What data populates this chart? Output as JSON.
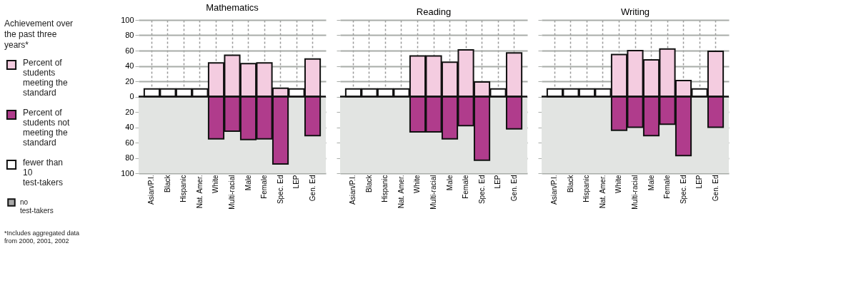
{
  "chart_data": [
    {
      "type": "bar",
      "title": "Mathematics",
      "legend_title": "Achievement over the past three years*",
      "legend": "left",
      "grid": true,
      "stacked": true,
      "annotations": [
        "*Includes aggregated data from 2000, 2001, 2002"
      ],
      "categories": [
        "Asian/P.I.",
        "Black",
        "Hispanic",
        "Nat. Amer.",
        "White",
        "Multi-racial",
        "Male",
        "Female",
        "Spec. Ed",
        "LEP",
        "Gen. Ed"
      ],
      "series": [
        {
          "name": "Percent of students meeting the standard",
          "color": "#f4cce0",
          "values": [
            null,
            null,
            null,
            null,
            44,
            54,
            43,
            44,
            11,
            null,
            49
          ]
        },
        {
          "name": "Percent of students not meeting the standard",
          "color": "#b03c8c",
          "values": [
            null,
            null,
            null,
            null,
            -55,
            -45,
            -56,
            -55,
            -88,
            null,
            -51
          ]
        },
        {
          "name": "fewer than 10 test-takers",
          "color": "#ffffff",
          "values": [
            10,
            10,
            10,
            10,
            null,
            null,
            null,
            null,
            null,
            10,
            null
          ]
        },
        {
          "name": "no test-takers",
          "color": "#a8a8a8",
          "values": [
            null,
            null,
            null,
            null,
            null,
            null,
            null,
            null,
            null,
            null,
            null
          ]
        }
      ],
      "ylim": [
        -100,
        100
      ],
      "yticks": [
        {
          "value": -100,
          "label": "100"
        },
        {
          "value": -80,
          "label": "80"
        },
        {
          "value": -60,
          "label": "60"
        },
        {
          "value": -40,
          "label": "40"
        },
        {
          "value": -20,
          "label": "20"
        },
        0,
        20,
        40,
        60,
        80,
        100
      ],
      "bands": [
        {
          "axis": "y",
          "from": -100,
          "to": 0,
          "color": "#e2e4e2"
        }
      ]
    },
    {
      "type": "bar",
      "title": "Reading",
      "grid": true,
      "tick_labels": "x",
      "stacked": true,
      "categories": [
        "Asian/P.I.",
        "Black",
        "Hispanic",
        "Nat. Amer.",
        "White",
        "Multi-racial",
        "Male",
        "Female",
        "Spec. Ed",
        "LEP",
        "Gen. Ed"
      ],
      "series": [
        {
          "color": "#f4cce0",
          "values": [
            null,
            null,
            null,
            null,
            53,
            53,
            45,
            61,
            19,
            null,
            57
          ]
        },
        {
          "color": "#b03c8c",
          "values": [
            null,
            null,
            null,
            null,
            -46,
            -46,
            -55,
            -38,
            -83,
            null,
            -42
          ]
        },
        {
          "color": "#ffffff",
          "values": [
            10,
            10,
            10,
            10,
            null,
            null,
            null,
            null,
            null,
            10,
            null
          ]
        }
      ],
      "ylim": [
        -100,
        100
      ],
      "yticks": [
        {
          "value": -100,
          "label": null
        },
        {
          "value": -80,
          "label": null
        },
        {
          "value": -60,
          "label": null
        },
        {
          "value": -40,
          "label": null
        },
        {
          "value": -20,
          "label": null
        },
        {
          "value": 0,
          "label": null
        },
        {
          "value": 20,
          "label": null
        },
        {
          "value": 40,
          "label": null
        },
        {
          "value": 60,
          "label": null
        },
        {
          "value": 80,
          "label": null
        },
        {
          "value": 100,
          "label": null
        }
      ],
      "bands": [
        {
          "axis": "y",
          "from": -100,
          "to": 0,
          "color": "#e2e4e2"
        }
      ]
    },
    {
      "type": "bar",
      "title": "Writing",
      "grid": true,
      "tick_labels": "x",
      "stacked": true,
      "categories": [
        "Asian/P.I.",
        "Black",
        "Hispanic",
        "Nat. Amer.",
        "White",
        "Multi-racial",
        "Male",
        "Female",
        "Spec. Ed",
        "LEP",
        "Gen. Ed"
      ],
      "series": [
        {
          "color": "#f4cce0",
          "values": [
            null,
            null,
            null,
            null,
            55,
            60,
            48,
            62,
            21,
            null,
            59
          ]
        },
        {
          "color": "#b03c8c",
          "values": [
            null,
            null,
            null,
            null,
            -44,
            -40,
            -51,
            -36,
            -77,
            null,
            -40
          ]
        },
        {
          "color": "#ffffff",
          "values": [
            10,
            10,
            10,
            10,
            null,
            null,
            null,
            null,
            null,
            10,
            null
          ]
        }
      ],
      "ylim": [
        -100,
        100
      ],
      "yticks": [
        {
          "value": -100,
          "label": null
        },
        {
          "value": -80,
          "label": null
        },
        {
          "value": -60,
          "label": null
        },
        {
          "value": -40,
          "label": null
        },
        {
          "value": -20,
          "label": null
        },
        {
          "value": 0,
          "label": null
        },
        {
          "value": 20,
          "label": null
        },
        {
          "value": 40,
          "label": null
        },
        {
          "value": 60,
          "label": null
        },
        {
          "value": 80,
          "label": null
        },
        {
          "value": 100,
          "label": null
        }
      ],
      "bands": [
        {
          "axis": "y",
          "from": -100,
          "to": 0,
          "color": "#e2e4e2"
        }
      ]
    }
  ]
}
